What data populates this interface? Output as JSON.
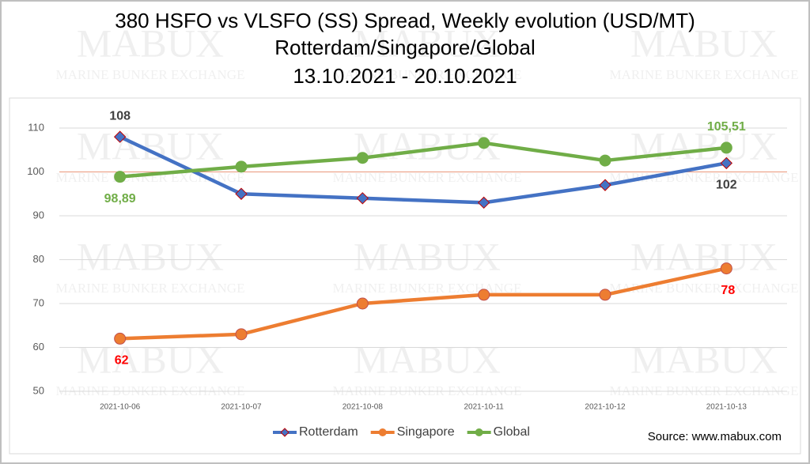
{
  "chart_data": {
    "type": "line",
    "title": "380 HSFO vs VLSFO (SS) Spread, Weekly evolution (USD/MT)",
    "subtitle": "Rotterdam/Singapore/Global",
    "period": "13.10.2021 - 20.10.2021",
    "source": "Source: www.mabux.com",
    "watermark": "MABUX",
    "watermark_sub": "MARINE BUNKER EXCHANGE",
    "categories": [
      "2021-10-06",
      "2021-10-07",
      "2021-10-08",
      "2021-10-11",
      "2021-10-12",
      "2021-10-13"
    ],
    "series": [
      {
        "name": "Rotterdam",
        "color": "#4472c4",
        "marker": "diamond",
        "label_color": "#404040",
        "values": [
          108,
          95,
          94,
          93,
          97,
          102
        ],
        "value_labels": [
          "108",
          null,
          null,
          null,
          null,
          "102"
        ]
      },
      {
        "name": "Singapore",
        "color": "#ed7d31",
        "marker": "circle",
        "label_color": "#ff0000",
        "values": [
          62,
          63,
          70,
          72,
          72,
          78
        ],
        "value_labels": [
          "62",
          null,
          null,
          null,
          null,
          "78"
        ]
      },
      {
        "name": "Global",
        "color": "#70ad47",
        "marker": "circle",
        "label_color": "#70ad47",
        "values": [
          98.89,
          101.2,
          103.2,
          106.6,
          102.6,
          105.51
        ],
        "value_labels": [
          "98,89",
          null,
          null,
          null,
          null,
          "105,51"
        ]
      }
    ],
    "ylim": [
      50,
      110
    ],
    "yticks": [
      50,
      60,
      70,
      80,
      90,
      100,
      110
    ],
    "grid": true,
    "reference_line": 100,
    "reference_color": "#e9967a",
    "legend": "bottom"
  }
}
